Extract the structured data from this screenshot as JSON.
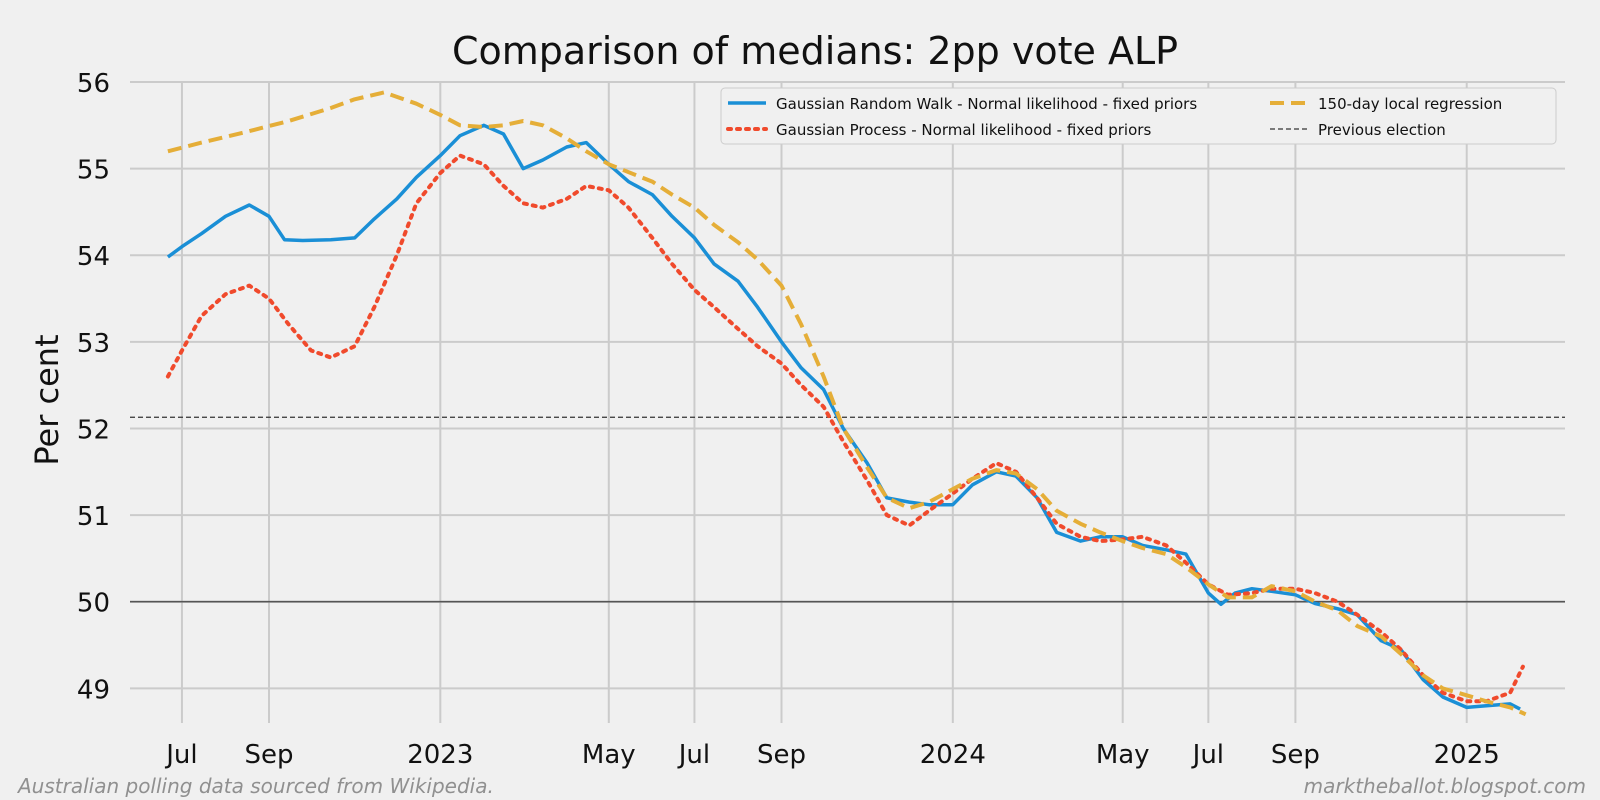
{
  "chart_data": {
    "type": "line",
    "title": "Comparison of medians: 2pp vote ALP",
    "ylabel": "Per cent",
    "xlabel": "",
    "ylim": [
      48.6,
      56.0
    ],
    "xlim": [
      "2022-05-25",
      "2025-03-12"
    ],
    "yticks": [
      49,
      50,
      51,
      52,
      53,
      54,
      55,
      56
    ],
    "xticks": [
      {
        "date": "2022-07-01",
        "label": "Jul"
      },
      {
        "date": "2022-09-01",
        "label": "Sep"
      },
      {
        "date": "2023-01-01",
        "label": "2023"
      },
      {
        "date": "2023-05-01",
        "label": "May"
      },
      {
        "date": "2023-07-01",
        "label": "Jul"
      },
      {
        "date": "2023-09-01",
        "label": "Sep"
      },
      {
        "date": "2024-01-01",
        "label": "2024"
      },
      {
        "date": "2024-05-01",
        "label": "May"
      },
      {
        "date": "2024-07-01",
        "label": "Jul"
      },
      {
        "date": "2024-09-01",
        "label": "Sep"
      },
      {
        "date": "2025-01-01",
        "label": "2025"
      }
    ],
    "grid": true,
    "legend_position": "top-right",
    "reference_lines": [
      {
        "y": 52.13,
        "name": "Previous election",
        "style": "dashed",
        "color": "#333333"
      },
      {
        "y": 50.0,
        "style": "solid",
        "color": "#555555"
      }
    ],
    "series": [
      {
        "name": "Gaussian Random Walk - Normal likelihood - fixed priors",
        "style": "solid",
        "color": "#1a8fd6",
        "points": [
          [
            "2022-06-21",
            53.98
          ],
          [
            "2022-07-01",
            54.1
          ],
          [
            "2022-07-15",
            54.25
          ],
          [
            "2022-08-01",
            54.45
          ],
          [
            "2022-08-18",
            54.58
          ],
          [
            "2022-09-01",
            54.45
          ],
          [
            "2022-09-12",
            54.18
          ],
          [
            "2022-09-25",
            54.17
          ],
          [
            "2022-10-15",
            54.18
          ],
          [
            "2022-11-01",
            54.2
          ],
          [
            "2022-11-15",
            54.42
          ],
          [
            "2022-12-01",
            54.65
          ],
          [
            "2022-12-15",
            54.9
          ],
          [
            "2023-01-01",
            55.15
          ],
          [
            "2023-01-15",
            55.38
          ],
          [
            "2023-02-01",
            55.5
          ],
          [
            "2023-02-15",
            55.4
          ],
          [
            "2023-03-01",
            55.0
          ],
          [
            "2023-03-15",
            55.1
          ],
          [
            "2023-04-01",
            55.25
          ],
          [
            "2023-04-15",
            55.3
          ],
          [
            "2023-05-01",
            55.05
          ],
          [
            "2023-05-15",
            54.85
          ],
          [
            "2023-06-01",
            54.7
          ],
          [
            "2023-06-15",
            54.45
          ],
          [
            "2023-07-01",
            54.2
          ],
          [
            "2023-07-15",
            53.9
          ],
          [
            "2023-08-01",
            53.7
          ],
          [
            "2023-08-15",
            53.4
          ],
          [
            "2023-09-01",
            53.0
          ],
          [
            "2023-09-15",
            52.7
          ],
          [
            "2023-10-01",
            52.45
          ],
          [
            "2023-10-15",
            52.0
          ],
          [
            "2023-11-01",
            51.6
          ],
          [
            "2023-11-15",
            51.2
          ],
          [
            "2023-12-01",
            51.15
          ],
          [
            "2023-12-15",
            51.12
          ],
          [
            "2024-01-01",
            51.12
          ],
          [
            "2024-01-15",
            51.35
          ],
          [
            "2024-02-01",
            51.5
          ],
          [
            "2024-02-15",
            51.45
          ],
          [
            "2024-03-01",
            51.2
          ],
          [
            "2024-03-15",
            50.8
          ],
          [
            "2024-04-01",
            50.7
          ],
          [
            "2024-04-15",
            50.75
          ],
          [
            "2024-05-01",
            50.75
          ],
          [
            "2024-05-15",
            50.65
          ],
          [
            "2024-06-01",
            50.6
          ],
          [
            "2024-06-15",
            50.55
          ],
          [
            "2024-07-01",
            50.1
          ],
          [
            "2024-07-10",
            49.97
          ],
          [
            "2024-07-20",
            50.1
          ],
          [
            "2024-08-01",
            50.15
          ],
          [
            "2024-08-15",
            50.12
          ],
          [
            "2024-09-01",
            50.08
          ],
          [
            "2024-09-15",
            49.98
          ],
          [
            "2024-10-01",
            49.92
          ],
          [
            "2024-10-15",
            49.85
          ],
          [
            "2024-11-01",
            49.55
          ],
          [
            "2024-11-15",
            49.45
          ],
          [
            "2024-12-01",
            49.1
          ],
          [
            "2024-12-15",
            48.9
          ],
          [
            "2025-01-01",
            48.78
          ],
          [
            "2025-01-15",
            48.8
          ],
          [
            "2025-02-01",
            48.82
          ],
          [
            "2025-02-08",
            48.76
          ]
        ]
      },
      {
        "name": "Gaussian Process - Normal likelihood - fixed priors",
        "style": "dotted",
        "color": "#f04a2c",
        "points": [
          [
            "2022-06-21",
            52.6
          ],
          [
            "2022-07-01",
            52.9
          ],
          [
            "2022-07-15",
            53.3
          ],
          [
            "2022-08-01",
            53.55
          ],
          [
            "2022-08-18",
            53.65
          ],
          [
            "2022-09-01",
            53.5
          ],
          [
            "2022-09-15",
            53.2
          ],
          [
            "2022-10-01",
            52.9
          ],
          [
            "2022-10-15",
            52.82
          ],
          [
            "2022-11-01",
            52.95
          ],
          [
            "2022-11-15",
            53.4
          ],
          [
            "2022-12-01",
            54.0
          ],
          [
            "2022-12-15",
            54.6
          ],
          [
            "2023-01-01",
            54.95
          ],
          [
            "2023-01-15",
            55.15
          ],
          [
            "2023-02-01",
            55.05
          ],
          [
            "2023-02-15",
            54.8
          ],
          [
            "2023-03-01",
            54.6
          ],
          [
            "2023-03-15",
            54.55
          ],
          [
            "2023-04-01",
            54.65
          ],
          [
            "2023-04-15",
            54.8
          ],
          [
            "2023-05-01",
            54.75
          ],
          [
            "2023-05-15",
            54.55
          ],
          [
            "2023-06-01",
            54.2
          ],
          [
            "2023-06-15",
            53.9
          ],
          [
            "2023-07-01",
            53.6
          ],
          [
            "2023-07-15",
            53.4
          ],
          [
            "2023-08-01",
            53.15
          ],
          [
            "2023-08-15",
            52.95
          ],
          [
            "2023-09-01",
            52.75
          ],
          [
            "2023-09-15",
            52.5
          ],
          [
            "2023-10-01",
            52.25
          ],
          [
            "2023-10-15",
            51.85
          ],
          [
            "2023-11-01",
            51.4
          ],
          [
            "2023-11-15",
            51.0
          ],
          [
            "2023-12-01",
            50.88
          ],
          [
            "2023-12-15",
            51.05
          ],
          [
            "2024-01-01",
            51.25
          ],
          [
            "2024-01-15",
            51.42
          ],
          [
            "2024-02-01",
            51.6
          ],
          [
            "2024-02-15",
            51.5
          ],
          [
            "2024-03-01",
            51.2
          ],
          [
            "2024-03-15",
            50.9
          ],
          [
            "2024-04-01",
            50.75
          ],
          [
            "2024-04-15",
            50.7
          ],
          [
            "2024-05-01",
            50.72
          ],
          [
            "2024-05-15",
            50.75
          ],
          [
            "2024-06-01",
            50.65
          ],
          [
            "2024-06-15",
            50.45
          ],
          [
            "2024-07-01",
            50.2
          ],
          [
            "2024-07-15",
            50.08
          ],
          [
            "2024-08-01",
            50.1
          ],
          [
            "2024-08-15",
            50.15
          ],
          [
            "2024-09-01",
            50.15
          ],
          [
            "2024-09-15",
            50.1
          ],
          [
            "2024-10-01",
            50.0
          ],
          [
            "2024-10-15",
            49.85
          ],
          [
            "2024-11-01",
            49.65
          ],
          [
            "2024-11-15",
            49.45
          ],
          [
            "2024-12-01",
            49.15
          ],
          [
            "2024-12-15",
            48.95
          ],
          [
            "2025-01-01",
            48.85
          ],
          [
            "2025-01-15",
            48.85
          ],
          [
            "2025-02-01",
            48.95
          ],
          [
            "2025-02-10",
            49.25
          ]
        ]
      },
      {
        "name": "150-day local regression",
        "style": "dashed",
        "color": "#e5ae38",
        "points": [
          [
            "2022-06-21",
            55.2
          ],
          [
            "2022-07-15",
            55.3
          ],
          [
            "2022-08-15",
            55.42
          ],
          [
            "2022-09-15",
            55.55
          ],
          [
            "2022-10-15",
            55.7
          ],
          [
            "2022-11-01",
            55.8
          ],
          [
            "2022-11-22",
            55.88
          ],
          [
            "2022-12-15",
            55.75
          ],
          [
            "2023-01-01",
            55.62
          ],
          [
            "2023-01-15",
            55.5
          ],
          [
            "2023-02-01",
            55.48
          ],
          [
            "2023-02-15",
            55.5
          ],
          [
            "2023-03-01",
            55.55
          ],
          [
            "2023-03-15",
            55.5
          ],
          [
            "2023-04-01",
            55.35
          ],
          [
            "2023-04-15",
            55.2
          ],
          [
            "2023-05-01",
            55.05
          ],
          [
            "2023-06-01",
            54.85
          ],
          [
            "2023-06-15",
            54.7
          ],
          [
            "2023-07-01",
            54.55
          ],
          [
            "2023-07-15",
            54.35
          ],
          [
            "2023-08-01",
            54.15
          ],
          [
            "2023-08-15",
            53.95
          ],
          [
            "2023-09-01",
            53.65
          ],
          [
            "2023-09-15",
            53.2
          ],
          [
            "2023-10-01",
            52.6
          ],
          [
            "2023-10-15",
            52.0
          ],
          [
            "2023-11-01",
            51.55
          ],
          [
            "2023-11-15",
            51.2
          ],
          [
            "2023-12-01",
            51.08
          ],
          [
            "2023-12-15",
            51.15
          ],
          [
            "2024-01-01",
            51.3
          ],
          [
            "2024-01-15",
            51.42
          ],
          [
            "2024-02-01",
            51.52
          ],
          [
            "2024-02-15",
            51.48
          ],
          [
            "2024-03-01",
            51.3
          ],
          [
            "2024-03-15",
            51.05
          ],
          [
            "2024-04-01",
            50.9
          ],
          [
            "2024-04-15",
            50.8
          ],
          [
            "2024-05-01",
            50.7
          ],
          [
            "2024-05-15",
            50.62
          ],
          [
            "2024-06-01",
            50.55
          ],
          [
            "2024-06-15",
            50.4
          ],
          [
            "2024-07-01",
            50.2
          ],
          [
            "2024-07-15",
            50.05
          ],
          [
            "2024-08-01",
            50.05
          ],
          [
            "2024-08-15",
            50.18
          ],
          [
            "2024-09-01",
            50.12
          ],
          [
            "2024-09-15",
            50.0
          ],
          [
            "2024-10-01",
            49.9
          ],
          [
            "2024-10-15",
            49.72
          ],
          [
            "2024-11-01",
            49.6
          ],
          [
            "2024-11-15",
            49.4
          ],
          [
            "2024-12-01",
            49.15
          ],
          [
            "2024-12-15",
            49.0
          ],
          [
            "2025-01-01",
            48.92
          ],
          [
            "2025-01-15",
            48.85
          ],
          [
            "2025-02-01",
            48.78
          ],
          [
            "2025-02-12",
            48.7
          ]
        ]
      }
    ]
  },
  "footer": {
    "left": "Australian polling data sourced from Wikipedia.",
    "right": "marktheballot.blogspot.com"
  }
}
